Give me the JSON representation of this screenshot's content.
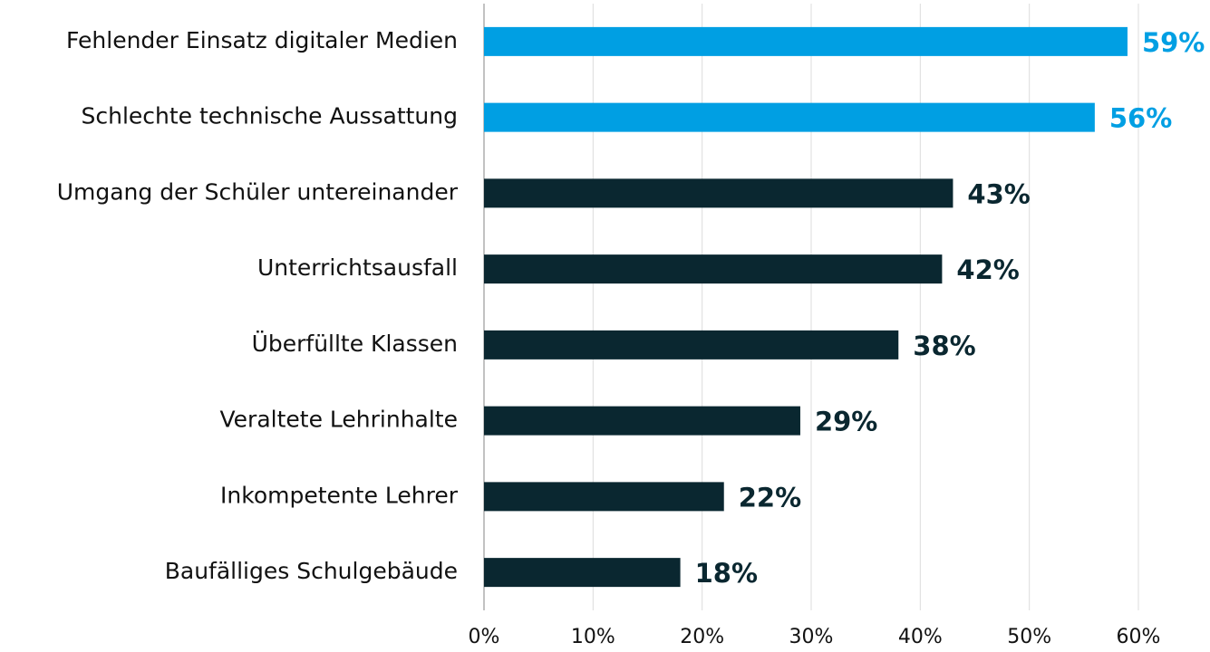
{
  "chart_data": {
    "type": "bar",
    "orientation": "horizontal",
    "categories": [
      "Fehlender Einsatz digitaler Medien",
      "Schlechte technische Aussattung",
      "Umgang der Schüler untereinander",
      "Unterrichtsausfall",
      "Überfüllte Klassen",
      "Veraltete Lehrinhalte",
      "Inkompetente Lehrer",
      "Baufälliges Schulgebäude"
    ],
    "values": [
      59,
      56,
      43,
      42,
      38,
      29,
      22,
      18
    ],
    "value_labels": [
      "59%",
      "56%",
      "43%",
      "42%",
      "38%",
      "29%",
      "22%",
      "18%"
    ],
    "colors": [
      "#009fe3",
      "#009fe3",
      "#0a2730",
      "#0a2730",
      "#0a2730",
      "#0a2730",
      "#0a2730",
      "#0a2730"
    ],
    "xlim": [
      0,
      60
    ],
    "xticks": [
      {
        "value": 0,
        "label": "0%"
      },
      {
        "value": 10,
        "label": "10%"
      },
      {
        "value": 20,
        "label": "20%"
      },
      {
        "value": 30,
        "label": "30%"
      },
      {
        "value": 40,
        "label": "40%"
      },
      {
        "value": 50,
        "label": "50%"
      },
      {
        "value": 60,
        "label": "60%"
      }
    ],
    "grid": true
  }
}
